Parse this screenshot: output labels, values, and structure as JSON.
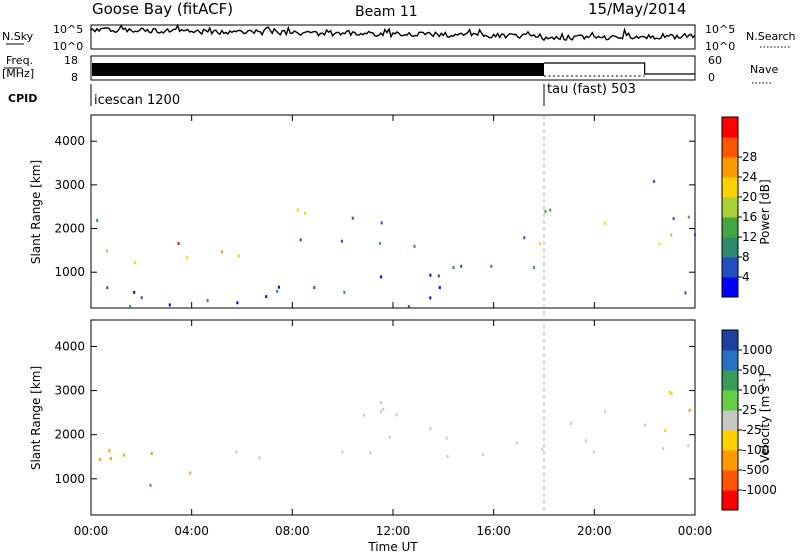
{
  "header": {
    "station": "Goose Bay (fitACF)",
    "beam": "Beam 11",
    "date": "15/May/2014"
  },
  "strips": {
    "nsky": {
      "label": "N.Sky",
      "ticks": [
        "10^5",
        "10^0"
      ]
    },
    "nsearch": {
      "label": "N.Search",
      "ticks": [
        "10^5",
        "10^0"
      ]
    },
    "freq": {
      "label_line1": "Freq.",
      "label_line2": "[MHz]",
      "ticks": [
        18,
        8
      ]
    },
    "nave": {
      "label": "Nave",
      "ticks": [
        60,
        0
      ]
    },
    "cpid": {
      "label": "CPID",
      "modes": [
        {
          "name": "icescan 1200",
          "start_hour": 0
        },
        {
          "name": "tau (fast) 503",
          "start_hour": 18
        }
      ]
    }
  },
  "chart_data": [
    {
      "type": "heatmap",
      "title": "",
      "quantity": "Power",
      "ylabel": "Slant Range [km]",
      "xlabel": "",
      "ylim": [
        180,
        4600
      ],
      "xlim": [
        0,
        24
      ],
      "yticks": [
        1000,
        2000,
        3000,
        4000
      ],
      "colorbar": {
        "label": "Power [dB]",
        "ticks": [
          4,
          8,
          12,
          16,
          20,
          24,
          28
        ],
        "range": [
          0,
          30
        ],
        "colors": [
          "#0000ff",
          "#2050c0",
          "#2e8a6e",
          "#44a640",
          "#a8d038",
          "#ffd000",
          "#ff9900",
          "#ff5500",
          "#ff0000"
        ]
      },
      "scatter_bands": [
        {
          "t0": 0.0,
          "t1": 5.0,
          "r0": 1150,
          "r1": 1750,
          "value": 22
        },
        {
          "t0": 0.0,
          "t1": 1.0,
          "r0": 1750,
          "r1": 2350,
          "value": 8
        },
        {
          "t0": 5.0,
          "t1": 7.5,
          "r0": 1250,
          "r1": 1800,
          "value": 14
        },
        {
          "t0": 7.5,
          "t1": 18.0,
          "r0": 1500,
          "r1": 1900,
          "value": 12
        },
        {
          "t0": 8.0,
          "t1": 10.0,
          "r0": 1900,
          "r1": 2500,
          "value": 10
        },
        {
          "t0": 9.0,
          "t1": 18.0,
          "r0": 900,
          "r1": 1450,
          "value": 6
        },
        {
          "t0": 10.0,
          "t1": 14.5,
          "r0": 2000,
          "r1": 2300,
          "value": 5
        },
        {
          "t0": 18.0,
          "t1": 22.0,
          "r0": 2150,
          "r1": 2750,
          "value": 12
        },
        {
          "t0": 22.0,
          "t1": 24.0,
          "r0": 1200,
          "r1": 1700,
          "value": 22
        },
        {
          "t0": 22.0,
          "t1": 24.0,
          "r0": 1800,
          "r1": 3700,
          "value": 8
        },
        {
          "t0": 0.0,
          "t1": 24.0,
          "r0": 200,
          "r1": 700,
          "value": 5
        }
      ]
    },
    {
      "type": "heatmap",
      "title": "",
      "quantity": "Velocity",
      "ylabel": "Slant Range [km]",
      "xlabel": "Time UT",
      "ylim": [
        180,
        4600
      ],
      "xlim": [
        0,
        24
      ],
      "yticks": [
        1000,
        2000,
        3000,
        4000
      ],
      "xticks": [
        "00:00",
        "04:00",
        "08:00",
        "12:00",
        "16:00",
        "20:00",
        "00:00"
      ],
      "colorbar": {
        "label_base": "Velocity [m s",
        "label_sup": "-1",
        "label_end": "]",
        "ticks": [
          1000,
          500,
          100,
          25,
          -25,
          -100,
          -500,
          -1000
        ],
        "colors": [
          "#2040a0",
          "#2870c0",
          "#3a9a5a",
          "#66cc44",
          "#c8c8c0",
          "#ffd000",
          "#ff9900",
          "#ff5500",
          "#ff0000"
        ]
      },
      "scatter_bands": [
        {
          "t0": 0.0,
          "t1": 7.0,
          "r0": 1100,
          "r1": 1700,
          "value": -150
        },
        {
          "t0": 0.0,
          "t1": 3.0,
          "r0": 750,
          "r1": 1000,
          "value": 150
        },
        {
          "t0": 5.0,
          "t1": 24.0,
          "r0": 1450,
          "r1": 2000,
          "value": 0
        },
        {
          "t0": 8.0,
          "t1": 14.0,
          "r0": 2000,
          "r1": 2800,
          "value": 0
        },
        {
          "t0": 18.0,
          "t1": 22.0,
          "r0": 2200,
          "r1": 2700,
          "value": 0
        },
        {
          "t0": 22.0,
          "t1": 24.0,
          "r0": 2100,
          "r1": 3700,
          "value": -100
        }
      ]
    }
  ]
}
